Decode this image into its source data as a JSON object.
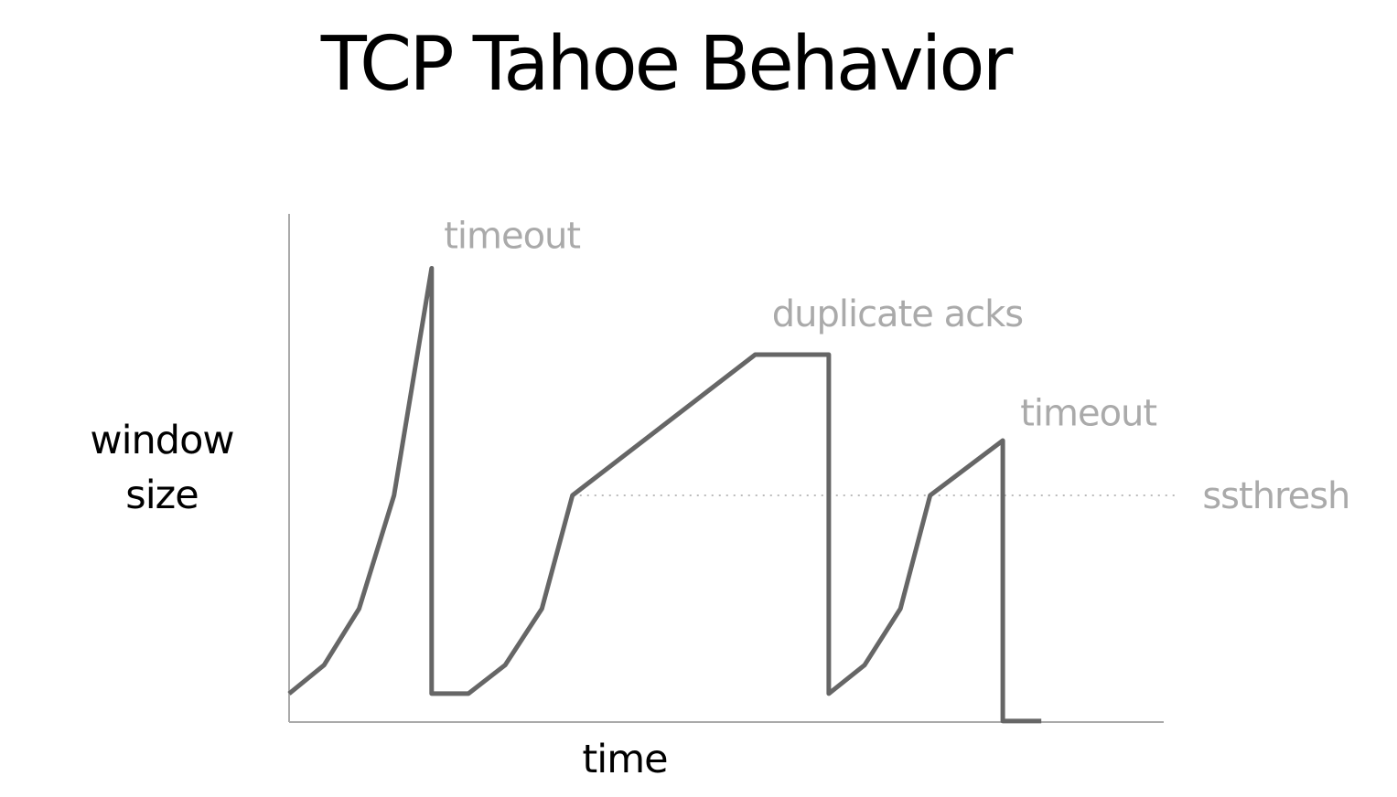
{
  "slide": {
    "title": "TCP Tahoe Behavior"
  },
  "chart_data": {
    "type": "line",
    "title": "TCP Tahoe Behavior",
    "xlabel": "time",
    "ylabel": "window size",
    "xlim": [
      0,
      100
    ],
    "ylim": [
      0,
      100
    ],
    "grid": false,
    "colors": {
      "series": "#666666",
      "axes": "#aaaaaa",
      "annotation": "#aaaaaa",
      "threshold": "#bbbbbb"
    },
    "series": [
      {
        "x": [
          0,
          4,
          8,
          12,
          16.3,
          16.3,
          20.5,
          24.7,
          28.9,
          32.4,
          53.3,
          61.7,
          61.7,
          65.8,
          69.9,
          73.3,
          81.6,
          81.6,
          86
        ],
        "y": [
          5.6,
          11.2,
          22.3,
          44.6,
          89.3,
          5.6,
          5.6,
          11.2,
          22.3,
          44.6,
          72.3,
          72.3,
          5.6,
          11.2,
          22.3,
          44.6,
          55.4,
          0.2,
          0.2
        ]
      }
    ],
    "threshold": {
      "label": "ssthresh",
      "y": 44.6,
      "x_start": 32.4,
      "x_end": 101.5
    },
    "annotations": [
      {
        "text": "timeout",
        "x": 17.7,
        "y": 93.3
      },
      {
        "text": "duplicate acks",
        "x": 55.2,
        "y": 77.9
      },
      {
        "text": "timeout",
        "x": 83.6,
        "y": 58.4
      }
    ]
  }
}
